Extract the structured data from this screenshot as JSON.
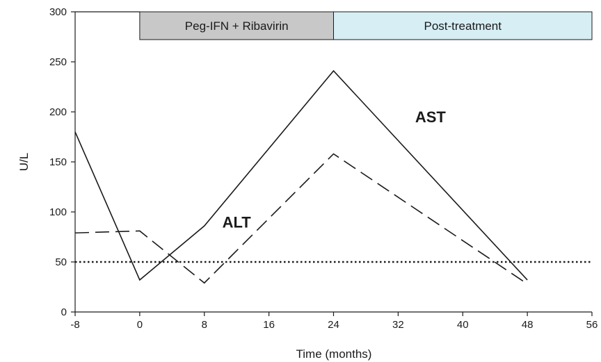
{
  "chart_data": {
    "type": "line",
    "xlabel": "Time (months)",
    "ylabel": "U/L",
    "xlim": [
      -8,
      56
    ],
    "ylim": [
      0,
      300
    ],
    "xticks": [
      -8,
      0,
      8,
      16,
      24,
      32,
      40,
      48,
      56
    ],
    "yticks": [
      0,
      50,
      100,
      150,
      200,
      250,
      300
    ],
    "grid": false,
    "legend": "none",
    "series": [
      {
        "name": "AST",
        "style": "solid",
        "color": "#1a1a1a",
        "x": [
          -8,
          0,
          8,
          24,
          48
        ],
        "values": [
          180,
          32,
          86,
          241,
          32
        ]
      },
      {
        "name": "ALT",
        "style": "dashed",
        "color": "#1a1a1a",
        "x": [
          -8,
          0,
          8,
          24,
          48
        ],
        "values": [
          79,
          81,
          29,
          158,
          28
        ]
      }
    ],
    "reference_lines": [
      {
        "y": 50,
        "style": "dotted",
        "color": "#1a1a1a"
      }
    ],
    "bands": [
      {
        "label": "Peg-IFN + Ribavirin",
        "x_start": 0,
        "x_end": 24,
        "color": "#c8c8c8"
      },
      {
        "label": "Post-treatment",
        "x_start": 24,
        "x_end": 56,
        "color": "#d6eef4"
      }
    ]
  }
}
